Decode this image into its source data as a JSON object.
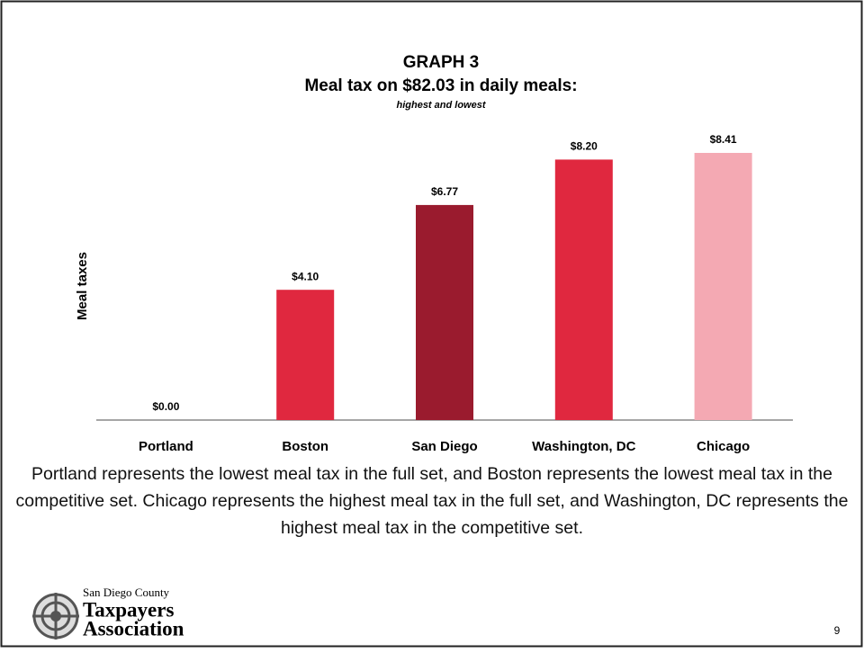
{
  "chart_data": {
    "type": "bar",
    "title": "GRAPH 3",
    "subtitle": "Meal tax on $82.03 in daily meals:",
    "subsubtitle": "highest and lowest",
    "ylabel": "Meal taxes",
    "categories": [
      "Portland",
      "Boston",
      "San Diego",
      "Washington, DC",
      "Chicago"
    ],
    "values": [
      0,
      4.1,
      6.77,
      8.2,
      8.41
    ],
    "value_labels": [
      "$0.00",
      "$4.10",
      "$6.77",
      "$8.20",
      "$8.41"
    ],
    "colors": [
      "#e0283f",
      "#e0283f",
      "#9a1b2e",
      "#e0283f",
      "#f4a9b3"
    ]
  },
  "caption": "Portland represents the lowest meal tax in the full set, and Boston represents the lowest meal tax in the competitive set.  Chicago represents the highest meal tax in the full set, and Washington, DC represents the highest meal tax in the competitive set.",
  "logo": {
    "line1": "San Diego County",
    "line2": "Taxpayers",
    "line3": "Association"
  },
  "page_number": "9"
}
